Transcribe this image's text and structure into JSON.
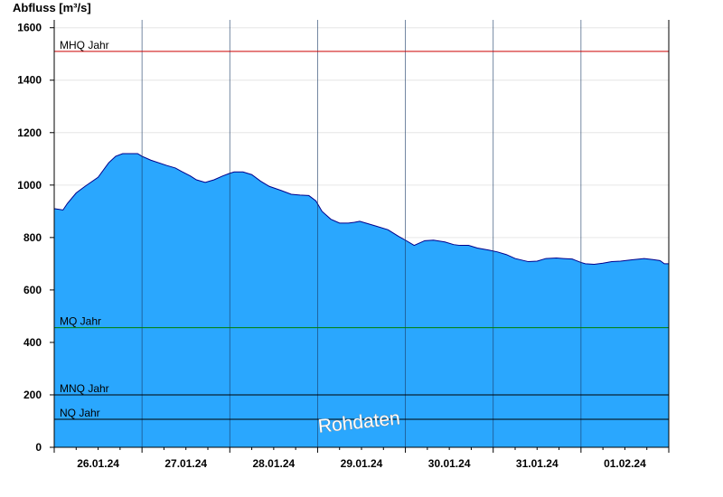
{
  "chart_data": {
    "type": "area",
    "title": "",
    "ylabel": "Abfluss [m³/s]",
    "xlabel": "",
    "ylim": [
      0,
      1630
    ],
    "xlim": [
      0,
      7
    ],
    "yticks": [
      0,
      200,
      400,
      600,
      800,
      1000,
      1200,
      1400,
      1600
    ],
    "xticks": [
      {
        "label": "26.01.24",
        "x": 0.5
      },
      {
        "label": "27.01.24",
        "x": 1.5
      },
      {
        "label": "28.01.24",
        "x": 2.5
      },
      {
        "label": "29.01.24",
        "x": 3.5
      },
      {
        "label": "30.01.24",
        "x": 4.5
      },
      {
        "label": "31.01.24",
        "x": 5.5
      },
      {
        "label": "01.02.24",
        "x": 6.5
      }
    ],
    "day_boundaries": [
      1,
      2,
      3,
      4,
      5,
      6
    ],
    "grid": true,
    "fill_color": "#2aa7fe",
    "line_color": "#00008b",
    "series": [
      {
        "x": [
          0,
          0.1,
          0.15,
          0.25,
          0.35,
          0.5,
          0.62,
          0.7,
          0.78,
          0.85,
          0.95,
          1.0,
          1.1,
          1.28,
          1.38,
          1.45,
          1.55,
          1.62,
          1.72,
          1.82,
          1.92,
          2.0,
          2.05,
          2.15,
          2.25,
          2.35,
          2.45,
          2.58,
          2.7,
          2.8,
          2.9,
          2.98,
          3.05,
          3.15,
          3.25,
          3.35,
          3.42,
          3.48,
          3.55,
          3.65,
          3.8,
          3.92,
          4.0,
          4.1,
          4.22,
          4.32,
          4.45,
          4.55,
          4.62,
          4.72,
          4.82,
          4.95,
          5.05,
          5.15,
          5.25,
          5.4,
          5.5,
          5.6,
          5.72,
          5.8,
          5.9,
          6.0,
          6.05,
          6.15,
          6.25,
          6.35,
          6.45,
          6.58,
          6.72,
          6.82,
          6.9,
          6.95,
          7.0
        ],
        "y": [
          910,
          905,
          930,
          970,
          995,
          1030,
          1085,
          1110,
          1120,
          1120,
          1120,
          1110,
          1095,
          1075,
          1065,
          1052,
          1035,
          1020,
          1010,
          1020,
          1035,
          1045,
          1050,
          1050,
          1040,
          1015,
          995,
          980,
          965,
          962,
          960,
          940,
          900,
          870,
          855,
          855,
          858,
          862,
          855,
          845,
          830,
          805,
          790,
          770,
          788,
          790,
          783,
          773,
          770,
          770,
          760,
          752,
          745,
          735,
          720,
          708,
          710,
          720,
          722,
          720,
          718,
          705,
          700,
          698,
          702,
          708,
          710,
          715,
          720,
          716,
          712,
          700,
          700
        ]
      }
    ],
    "reference_lines": [
      {
        "label": "MHQ Jahr",
        "y": 1510,
        "color": "#cc0000"
      },
      {
        "label": "MQ Jahr",
        "y": 456,
        "color": "#008000"
      },
      {
        "label": "MNQ Jahr",
        "y": 200,
        "color": "#000000"
      },
      {
        "label": "NQ Jahr",
        "y": 107,
        "color": "#000000"
      }
    ],
    "watermark": "Rohdaten"
  }
}
